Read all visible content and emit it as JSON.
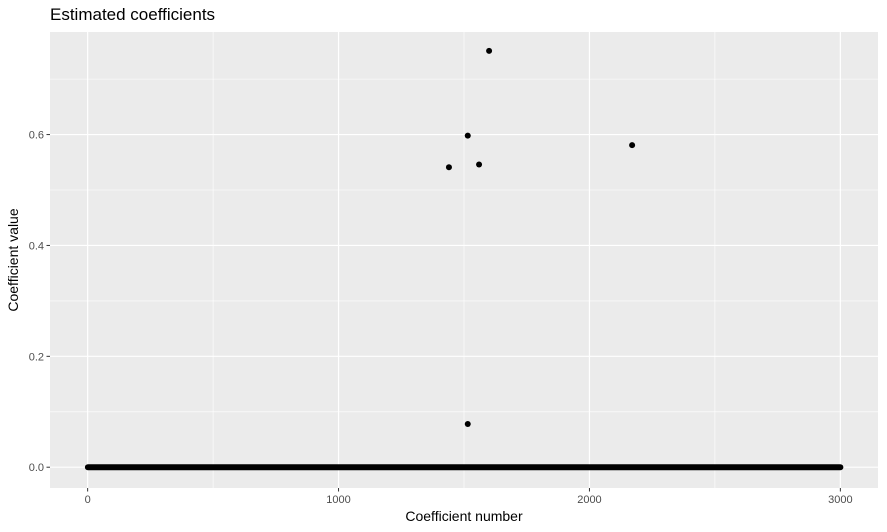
{
  "chart_data": {
    "type": "scatter",
    "title": "Estimated coefficients",
    "xlabel": "Coefficient number",
    "ylabel": "Coefficient value",
    "xlim": [
      -150,
      3150
    ],
    "ylim": [
      -0.0375,
      0.785
    ],
    "x_ticks": [
      0,
      1000,
      2000,
      3000
    ],
    "y_ticks": [
      0.0,
      0.2,
      0.4,
      0.6
    ],
    "x_tick_labels": [
      "0",
      "1000",
      "2000",
      "3000"
    ],
    "y_tick_labels": [
      "0.0",
      "0.2",
      "0.4",
      "0.6"
    ],
    "x_minor_gridlines": [
      500,
      1500,
      2500
    ],
    "y_minor_gridlines": [
      0.1,
      0.3,
      0.5,
      0.7
    ],
    "grid": true,
    "legend": "none",
    "panel_color": "#ebebeb",
    "grid_color": "#ffffff",
    "point_color": "#000000",
    "baseline_points": {
      "x_start": 1,
      "x_end": 3000,
      "y": 0
    },
    "points": [
      {
        "x": 1440,
        "y": 0.541
      },
      {
        "x": 1515,
        "y": 0.598
      },
      {
        "x": 1515,
        "y": 0.078
      },
      {
        "x": 1560,
        "y": 0.546
      },
      {
        "x": 1600,
        "y": 0.751
      },
      {
        "x": 2170,
        "y": 0.581
      }
    ]
  }
}
